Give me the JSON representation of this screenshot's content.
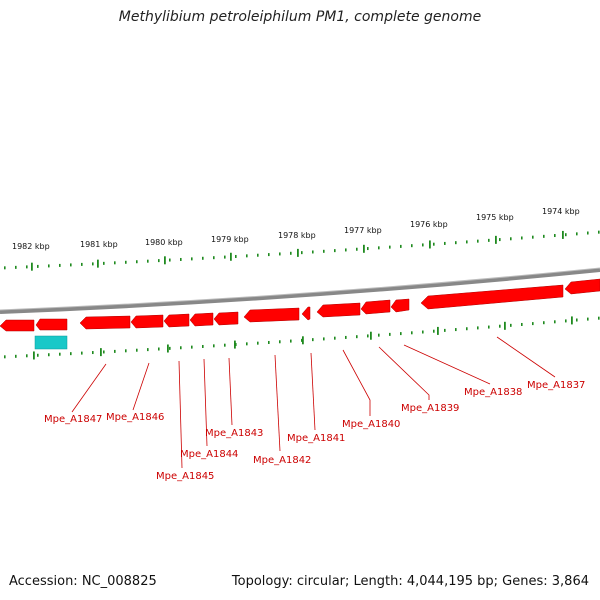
{
  "title": "Methylibium petroleiphilum PM1, complete genome",
  "accession": "Accession: NC_008825",
  "summary": "Topology: circular; Length: 4,044,195 bp; Genes: 3,864",
  "scale_labels": [
    "1982 kbp",
    "1981 kbp",
    "1980 kbp",
    "1979 kbp",
    "1978 kbp",
    "1977 kbp",
    "1976 kbp",
    "1975 kbp",
    "1974 kbp"
  ],
  "gene_labels": [
    "Mpe_A1847",
    "Mpe_A1846",
    "Mpe_A1845",
    "Mpe_A1844",
    "Mpe_A1843",
    "Mpe_A1842",
    "Mpe_A1841",
    "Mpe_A1840",
    "Mpe_A1839",
    "Mpe_A1838",
    "Mpe_A1837"
  ],
  "colors": {
    "gene": "#ff0000",
    "gene_shadow": "#cc0000",
    "rna_feature": "#19c8c8",
    "ticks": "#1f8a1f",
    "backbone": "#777777",
    "label": "#cc0000"
  }
}
